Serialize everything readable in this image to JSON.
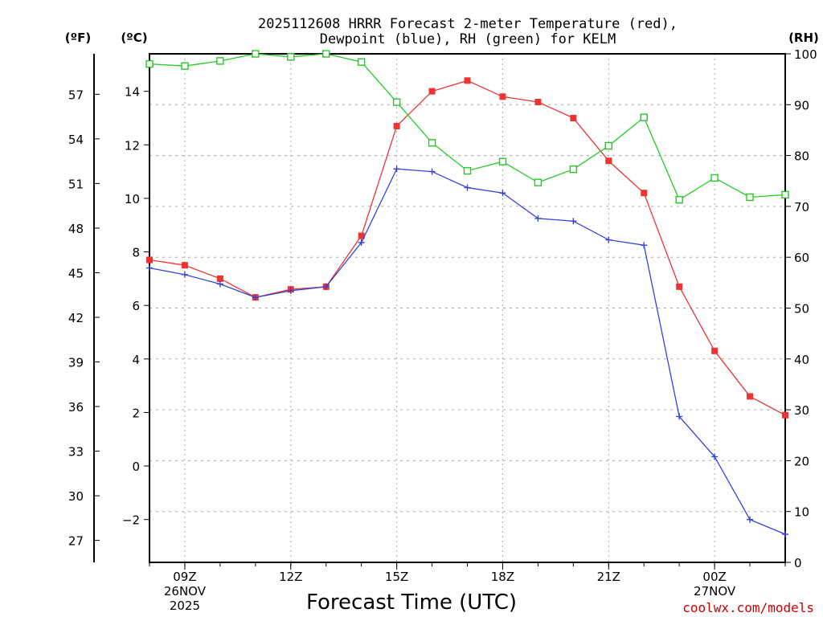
{
  "chart_data": {
    "type": "line",
    "title_line1": "2025112608 HRRR Forecast 2-meter Temperature (red),",
    "title_line2": "Dewpoint (blue), RH (green) for KELM",
    "unit_left_f": "(ºF)",
    "unit_left_c": "(ºC)",
    "unit_right": "(RH)",
    "xlabel": "Forecast Time (UTC)",
    "credit": "coolwx.com/models",
    "x_hours": [
      8,
      9,
      10,
      11,
      12,
      13,
      14,
      15,
      16,
      17,
      18,
      19,
      20,
      21,
      22,
      23,
      24,
      25,
      26
    ],
    "x_range": [
      8,
      26
    ],
    "x_ticks": [
      {
        "hour": 9,
        "lines": [
          "09Z",
          "26NOV",
          "2025"
        ]
      },
      {
        "hour": 12,
        "lines": [
          "12Z"
        ]
      },
      {
        "hour": 15,
        "lines": [
          "15Z"
        ]
      },
      {
        "hour": 18,
        "lines": [
          "18Z"
        ]
      },
      {
        "hour": 21,
        "lines": [
          "21Z"
        ]
      },
      {
        "hour": 24,
        "lines": [
          "00Z",
          "27NOV"
        ]
      }
    ],
    "celsius_range": [
      -3.6,
      15.4
    ],
    "celsius_ticks": [
      -2,
      0,
      2,
      4,
      6,
      8,
      10,
      12,
      14
    ],
    "fahrenheit_ticks": [
      27,
      30,
      33,
      36,
      39,
      42,
      45,
      48,
      51,
      54,
      57
    ],
    "rh_range": [
      0,
      100
    ],
    "rh_ticks": [
      0,
      10,
      20,
      30,
      40,
      50,
      60,
      70,
      80,
      90,
      100
    ],
    "series": [
      {
        "name": "2-meter Temperature",
        "color": "#ee3333",
        "marker": "filled-square",
        "axis": "celsius",
        "values": [
          7.7,
          7.5,
          7.0,
          6.3,
          6.6,
          6.7,
          8.6,
          12.7,
          14.0,
          14.4,
          13.8,
          13.6,
          13.0,
          11.4,
          10.2,
          6.7,
          4.3,
          2.6,
          1.9
        ]
      },
      {
        "name": "Dewpoint",
        "color": "#3344dd",
        "marker": "plus",
        "axis": "celsius",
        "values": [
          7.4,
          7.15,
          6.8,
          6.3,
          6.55,
          6.7,
          8.35,
          11.1,
          11.0,
          10.4,
          10.2,
          9.25,
          9.15,
          8.45,
          8.25,
          1.85,
          0.35,
          -2.0,
          -2.55
        ]
      },
      {
        "name": "RH",
        "color": "#22cc22",
        "marker": "open-square",
        "axis": "rh",
        "values": [
          98.0,
          97.6,
          98.6,
          100,
          99.4,
          100,
          98.4,
          90.5,
          82.5,
          77.0,
          78.8,
          74.7,
          77.3,
          81.9,
          87.5,
          71.3,
          75.6,
          71.8,
          72.3
        ]
      }
    ]
  }
}
